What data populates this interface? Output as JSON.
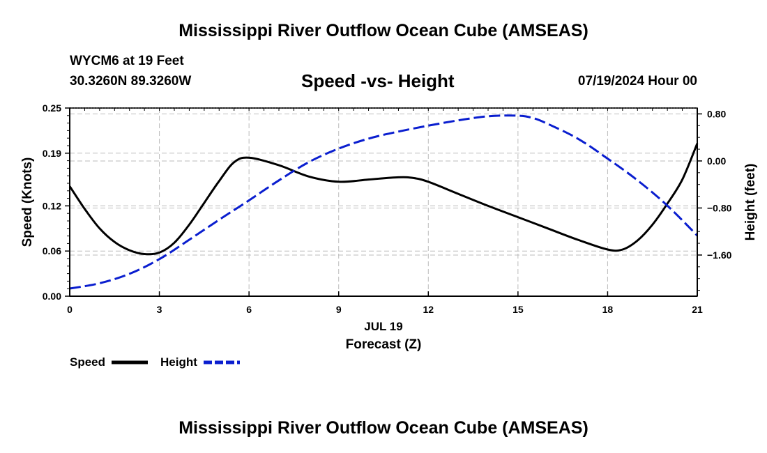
{
  "page": {
    "title_top": "Mississippi River Outflow Ocean Cube (AMSEAS)",
    "title_bottom": "Mississippi River Outflow Ocean Cube (AMSEAS)",
    "station": "WYCM6 at 19 Feet",
    "coords": "30.3260N  89.3260W",
    "datetime": "07/19/2024 Hour 00"
  },
  "colors": {
    "speed": "#000000",
    "height": "#0a1ecf",
    "grid": "#bbbbbb"
  },
  "chart_data": {
    "type": "line",
    "title": "Speed -vs- Height",
    "xlabel": "Forecast (Z)",
    "x_date_label": "JUL 19",
    "x_ticks": [
      "0",
      "3",
      "6",
      "9",
      "12",
      "15",
      "18",
      "21"
    ],
    "xlim": [
      0,
      21
    ],
    "y_left": {
      "label": "Speed (Knots)",
      "lim": [
        0,
        0.25
      ],
      "ticks": [
        0.0,
        0.06,
        0.12,
        0.19,
        0.25
      ],
      "tick_labels": [
        "0.00",
        "0.06",
        "0.12",
        "0.19",
        "0.25"
      ]
    },
    "y_right": {
      "label": "Height (feet)",
      "lim": [
        -2.3,
        0.9
      ],
      "ticks": [
        0.8,
        0.0,
        -0.8,
        -1.6
      ],
      "tick_labels": [
        "0.80",
        "0.00",
        "−0.80",
        "−1.60"
      ]
    },
    "legend": {
      "placement": "bottom-left",
      "entries": [
        "Speed",
        "Height"
      ]
    },
    "series": [
      {
        "name": "Speed",
        "axis": "left",
        "style": "solid",
        "x": [
          0,
          0.5,
          1,
          1.5,
          2,
          2.5,
          3,
          3.5,
          4,
          4.5,
          5,
          5.5,
          6,
          7,
          8,
          9,
          10,
          11,
          11.5,
          12,
          13,
          14,
          15,
          16,
          17,
          18,
          18.5,
          19,
          19.5,
          20,
          20.5,
          21
        ],
        "values": [
          0.146,
          0.116,
          0.09,
          0.072,
          0.061,
          0.056,
          0.058,
          0.071,
          0.095,
          0.124,
          0.153,
          0.178,
          0.184,
          0.174,
          0.159,
          0.152,
          0.155,
          0.158,
          0.157,
          0.152,
          0.136,
          0.12,
          0.105,
          0.09,
          0.075,
          0.062,
          0.062,
          0.074,
          0.095,
          0.123,
          0.155,
          0.203
        ]
      },
      {
        "name": "Height",
        "axis": "right",
        "style": "dashed",
        "x": [
          0,
          1,
          2,
          3,
          4,
          5,
          6,
          7,
          8,
          9,
          10,
          11,
          12,
          13,
          14,
          15,
          15.5,
          16,
          17,
          18,
          19,
          20,
          21
        ],
        "values": [
          -2.17,
          -2.08,
          -1.92,
          -1.67,
          -1.34,
          -1.0,
          -0.67,
          -0.33,
          -0.02,
          0.21,
          0.38,
          0.5,
          0.6,
          0.69,
          0.76,
          0.77,
          0.73,
          0.63,
          0.38,
          0.04,
          -0.33,
          -0.76,
          -1.27
        ]
      }
    ]
  }
}
